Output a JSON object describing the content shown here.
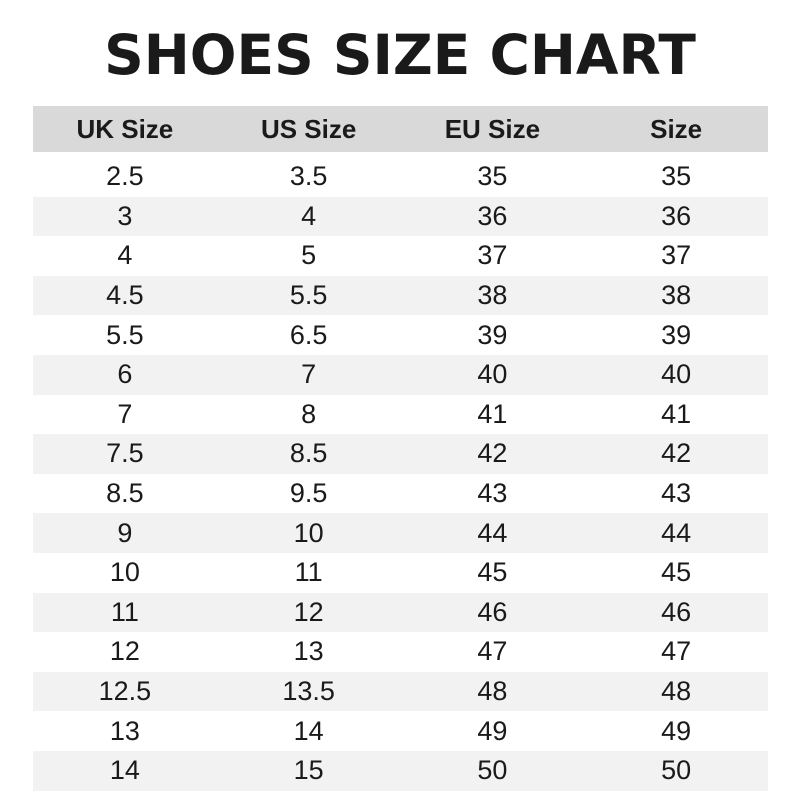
{
  "title": "SHOES SIZE CHART",
  "colors": {
    "header_bg": "#d9d9d9",
    "stripe_bg": "#f2f2f2",
    "text": "#1a1a1a"
  },
  "headers": [
    "UK Size",
    "US Size",
    "EU Size",
    "Size"
  ],
  "rows": [
    [
      "2.5",
      "3.5",
      "35",
      "35"
    ],
    [
      "3",
      "4",
      "36",
      "36"
    ],
    [
      "4",
      "5",
      "37",
      "37"
    ],
    [
      "4.5",
      "5.5",
      "38",
      "38"
    ],
    [
      "5.5",
      "6.5",
      "39",
      "39"
    ],
    [
      "6",
      "7",
      "40",
      "40"
    ],
    [
      "7",
      "8",
      "41",
      "41"
    ],
    [
      "7.5",
      "8.5",
      "42",
      "42"
    ],
    [
      "8.5",
      "9.5",
      "43",
      "43"
    ],
    [
      "9",
      "10",
      "44",
      "44"
    ],
    [
      "10",
      "11",
      "45",
      "45"
    ],
    [
      "11",
      "12",
      "46",
      "46"
    ],
    [
      "12",
      "13",
      "47",
      "47"
    ],
    [
      "12.5",
      "13.5",
      "48",
      "48"
    ],
    [
      "13",
      "14",
      "49",
      "49"
    ],
    [
      "14",
      "15",
      "50",
      "50"
    ]
  ]
}
